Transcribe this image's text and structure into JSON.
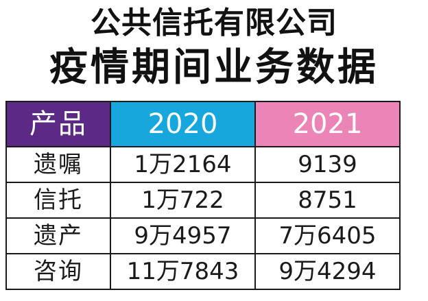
{
  "title_line1": "公共信托有限公司",
  "title_line2": "疫情期间业务数据",
  "colors": {
    "product_header": "#5b2a84",
    "year_2020_header": "#17a7dc",
    "year_2021_header": "#ea85b5"
  },
  "chart_data": {
    "type": "table",
    "columns": [
      "产品",
      "2020",
      "2021"
    ],
    "rows": [
      [
        "遗嘱",
        "1万2164",
        "9139"
      ],
      [
        "信托",
        "1万722",
        "8751"
      ],
      [
        "遗产",
        "9万4957",
        "7万6405"
      ],
      [
        "咨询",
        "11万7843",
        "9万4294"
      ]
    ]
  }
}
